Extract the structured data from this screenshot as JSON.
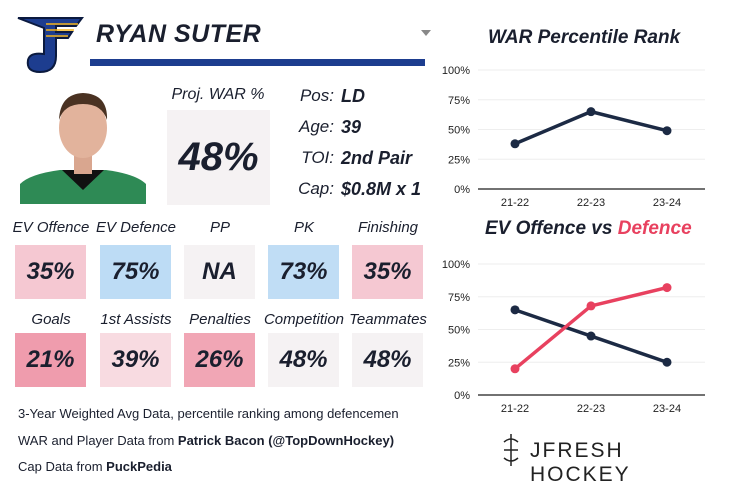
{
  "player": {
    "name": "RYAN SUTER",
    "proj_war_label": "Proj. WAR %",
    "proj_war": "48%",
    "info": [
      {
        "k": "Pos:",
        "v": "LD"
      },
      {
        "k": "Age:",
        "v": "39"
      },
      {
        "k": "TOI:",
        "v": "2nd Pair"
      },
      {
        "k": "Cap:",
        "v": "$0.8M x 1"
      }
    ]
  },
  "tiles": [
    {
      "label": "EV Offence",
      "value": "35%",
      "color": "#f5c8d2"
    },
    {
      "label": "EV Defence",
      "value": "75%",
      "color": "#bddcf5"
    },
    {
      "label": "PP",
      "value": "NA",
      "color": "#f5f2f3"
    },
    {
      "label": "PK",
      "value": "73%",
      "color": "#c0ddf5"
    },
    {
      "label": "Finishing",
      "value": "35%",
      "color": "#f5c8d2"
    },
    {
      "label": "Goals",
      "value": "21%",
      "color": "#ef9cad"
    },
    {
      "label": "1st Assists",
      "value": "39%",
      "color": "#f8dbe1"
    },
    {
      "label": "Penalties",
      "value": "26%",
      "color": "#f1a6b5"
    },
    {
      "label": "Competition",
      "value": "48%",
      "color": "#f5f2f3"
    },
    {
      "label": "Teammates",
      "value": "48%",
      "color": "#f5f2f3"
    }
  ],
  "footer": {
    "line1": "3-Year Weighted Avg Data, percentile ranking among defencemen",
    "line2_pre": "WAR and Player Data from ",
    "line2_bold": "Patrick Bacon (@TopDownHockey)",
    "line3_pre": "Cap Data from ",
    "line3_bold": "PuckPedia",
    "brand": "JFRESH HOCKEY"
  },
  "chart_data": [
    {
      "type": "line",
      "title": "WAR Percentile Rank",
      "categories": [
        "21-22",
        "22-23",
        "23-24"
      ],
      "yticks": [
        "0%",
        "25%",
        "50%",
        "75%",
        "100%"
      ],
      "ylim": [
        0,
        100
      ],
      "series": [
        {
          "values": [
            38,
            65,
            49
          ],
          "color": "#1c2a44"
        }
      ]
    },
    {
      "type": "line",
      "title_parts": [
        "EV Offence vs ",
        "Defence"
      ],
      "categories": [
        "21-22",
        "22-23",
        "23-24"
      ],
      "yticks": [
        "0%",
        "25%",
        "50%",
        "75%",
        "100%"
      ],
      "ylim": [
        0,
        100
      ],
      "series": [
        {
          "name": "EV Offence",
          "values": [
            65,
            45,
            25
          ],
          "color": "#1c2a44"
        },
        {
          "name": "Defence",
          "values": [
            20,
            68,
            82
          ],
          "color": "#e8415f"
        }
      ]
    }
  ]
}
